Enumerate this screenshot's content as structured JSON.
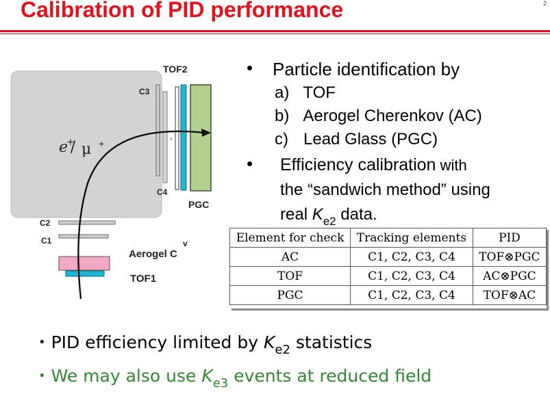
{
  "title": "Calibration of PID performance",
  "page_number": "2",
  "diagram": {
    "labels": {
      "tof2": "TOF2",
      "c3": "C3",
      "c4": "C4",
      "pgc": "PGC",
      "c2": "C2",
      "c1": "C1",
      "aerogel": "Aerogel C",
      "aerogel_accent": "v",
      "tof1": "TOF1",
      "particle": "e",
      "particle_sup": "+",
      "slash": "/",
      "mu": "μ",
      "mu_sup": "+"
    },
    "colors": {
      "magnet": "#d3d3d3",
      "tof": "#1fb6d6",
      "pgc": "#b2d18e",
      "aerogel": "#f2a8c2"
    }
  },
  "bullets": {
    "pid_heading": "Particle identification by",
    "items": [
      {
        "marker": "a)",
        "text": "TOF"
      },
      {
        "marker": "b)",
        "text": "Aerogel Cherenkov (AC)"
      },
      {
        "marker": "c)",
        "text": "Lead Glass (PGC)"
      }
    ],
    "eff_line1_a": "Efficiency calibration",
    "eff_line1_b": " with",
    "eff_line2": "the “sandwich method” using",
    "eff_line3_a": "real ",
    "eff_line3_k": "K",
    "eff_line3_sub": "e2",
    "eff_line3_b": " data."
  },
  "table": {
    "headers": [
      "Element for check",
      "Tracking elements",
      "PID"
    ],
    "rows": [
      [
        "AC",
        "C1, C2, C3, C4",
        "TOF⊗PGC"
      ],
      [
        "TOF",
        "C1, C2, C3, C4",
        "AC⊗PGC"
      ],
      [
        "PGC",
        "C1, C2, C3, C4",
        "TOF⊗AC"
      ]
    ]
  },
  "bottom": {
    "line1_a": "PID efficiency limited by ",
    "line1_k": "K",
    "line1_sub": "e2",
    "line1_b": " statistics",
    "line2_a": "We may also use ",
    "line2_k": "K",
    "line2_sub": "e3",
    "line2_b": " events at reduced field",
    "line2_color": "#2e8b2e"
  }
}
